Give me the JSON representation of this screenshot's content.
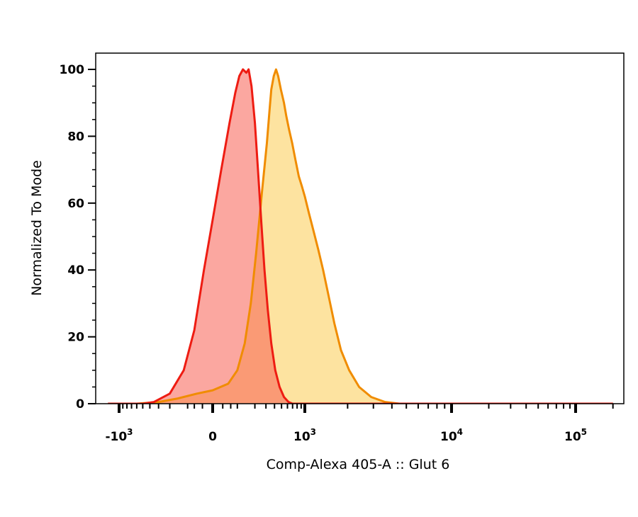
{
  "chart_data": {
    "type": "area",
    "xlabel": "Comp-Alexa 405-A :: Glut 6",
    "ylabel": "Normalized To Mode",
    "x_scale": "biexponential",
    "ylim": [
      0,
      100
    ],
    "y_ticks": [
      {
        "value": 0,
        "label": "0"
      },
      {
        "value": 20,
        "label": "20"
      },
      {
        "value": 40,
        "label": "40"
      },
      {
        "value": 60,
        "label": "60"
      },
      {
        "value": 80,
        "label": "80"
      },
      {
        "value": 100,
        "label": "100"
      }
    ],
    "x_ticks": [
      {
        "value": -1000,
        "base": "-10",
        "exp": "3"
      },
      {
        "value": 0,
        "base": "0",
        "exp": ""
      },
      {
        "value": 1000,
        "base": "10",
        "exp": "3"
      },
      {
        "value": 10000,
        "base": "10",
        "exp": "4"
      },
      {
        "value": 100000,
        "base": "10",
        "exp": "5"
      }
    ],
    "series": [
      {
        "color": "#f5a623",
        "stroke": "#f08c00",
        "fill": "#fde3a0",
        "points": [
          [
            -1400,
            0
          ],
          [
            -600,
            0
          ],
          [
            -300,
            0.5
          ],
          [
            -150,
            1.5
          ],
          [
            -50,
            3
          ],
          [
            0,
            4
          ],
          [
            50,
            6
          ],
          [
            90,
            10
          ],
          [
            130,
            18
          ],
          [
            170,
            30
          ],
          [
            210,
            45
          ],
          [
            260,
            63
          ],
          [
            310,
            78
          ],
          [
            340,
            88
          ],
          [
            360,
            94
          ],
          [
            390,
            98
          ],
          [
            420,
            100
          ],
          [
            450,
            98
          ],
          [
            490,
            94
          ],
          [
            540,
            90
          ],
          [
            580,
            86
          ],
          [
            630,
            82
          ],
          [
            690,
            78
          ],
          [
            760,
            73
          ],
          [
            840,
            68
          ],
          [
            920,
            65
          ],
          [
            1000,
            62
          ],
          [
            1070,
            57
          ],
          [
            1150,
            52
          ],
          [
            1250,
            46
          ],
          [
            1350,
            40
          ],
          [
            1480,
            32
          ],
          [
            1620,
            24
          ],
          [
            1800,
            16
          ],
          [
            2050,
            10
          ],
          [
            2400,
            5
          ],
          [
            2900,
            2
          ],
          [
            3600,
            0.5
          ],
          [
            4500,
            0
          ],
          [
            200000,
            0
          ]
        ]
      },
      {
        "color": "#f22a1e",
        "stroke": "#ee1c12",
        "fill": "rgba(248,95,82,0.55)",
        "points": [
          [
            -1400,
            0
          ],
          [
            -500,
            0
          ],
          [
            -350,
            0.5
          ],
          [
            -200,
            3
          ],
          [
            -110,
            10
          ],
          [
            -60,
            22
          ],
          [
            -25,
            40
          ],
          [
            0,
            55
          ],
          [
            25,
            70
          ],
          [
            55,
            84
          ],
          [
            80,
            93
          ],
          [
            100,
            98
          ],
          [
            120,
            100
          ],
          [
            140,
            99
          ],
          [
            155,
            100
          ],
          [
            175,
            95
          ],
          [
            200,
            84
          ],
          [
            225,
            70
          ],
          [
            255,
            54
          ],
          [
            285,
            40
          ],
          [
            320,
            28
          ],
          [
            360,
            18
          ],
          [
            410,
            10
          ],
          [
            470,
            5
          ],
          [
            540,
            2
          ],
          [
            620,
            0.5
          ],
          [
            700,
            0
          ],
          [
            200000,
            0
          ]
        ]
      }
    ]
  }
}
